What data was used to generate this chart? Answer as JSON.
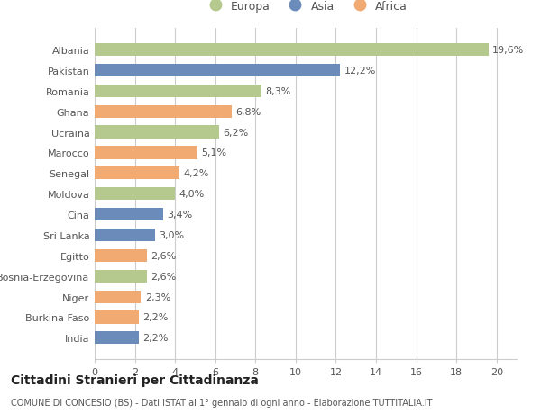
{
  "categories": [
    "Albania",
    "Pakistan",
    "Romania",
    "Ghana",
    "Ucraina",
    "Marocco",
    "Senegal",
    "Moldova",
    "Cina",
    "Sri Lanka",
    "Egitto",
    "Bosnia-Erzegovina",
    "Niger",
    "Burkina Faso",
    "India"
  ],
  "values": [
    19.6,
    12.2,
    8.3,
    6.8,
    6.2,
    5.1,
    4.2,
    4.0,
    3.4,
    3.0,
    2.6,
    2.6,
    2.3,
    2.2,
    2.2
  ],
  "labels": [
    "19,6%",
    "12,2%",
    "8,3%",
    "6,8%",
    "6,2%",
    "5,1%",
    "4,2%",
    "4,0%",
    "3,4%",
    "3,0%",
    "2,6%",
    "2,6%",
    "2,3%",
    "2,2%",
    "2,2%"
  ],
  "continents": [
    "Europa",
    "Asia",
    "Europa",
    "Africa",
    "Europa",
    "Africa",
    "Africa",
    "Europa",
    "Asia",
    "Asia",
    "Africa",
    "Europa",
    "Africa",
    "Africa",
    "Asia"
  ],
  "colors": {
    "Europa": "#b5c98e",
    "Asia": "#6b8cba",
    "Africa": "#f0aa72"
  },
  "xlim": [
    0,
    21
  ],
  "xticks": [
    0,
    2,
    4,
    6,
    8,
    10,
    12,
    14,
    16,
    18,
    20
  ],
  "title": "Cittadini Stranieri per Cittadinanza",
  "subtitle": "COMUNE DI CONCESIO (BS) - Dati ISTAT al 1° gennaio di ogni anno - Elaborazione TUTTITALIA.IT",
  "bg_color": "#ffffff",
  "grid_color": "#cccccc",
  "bar_height": 0.62,
  "label_fontsize": 8,
  "tick_fontsize": 8,
  "title_fontsize": 10,
  "subtitle_fontsize": 7,
  "legend_fontsize": 9
}
